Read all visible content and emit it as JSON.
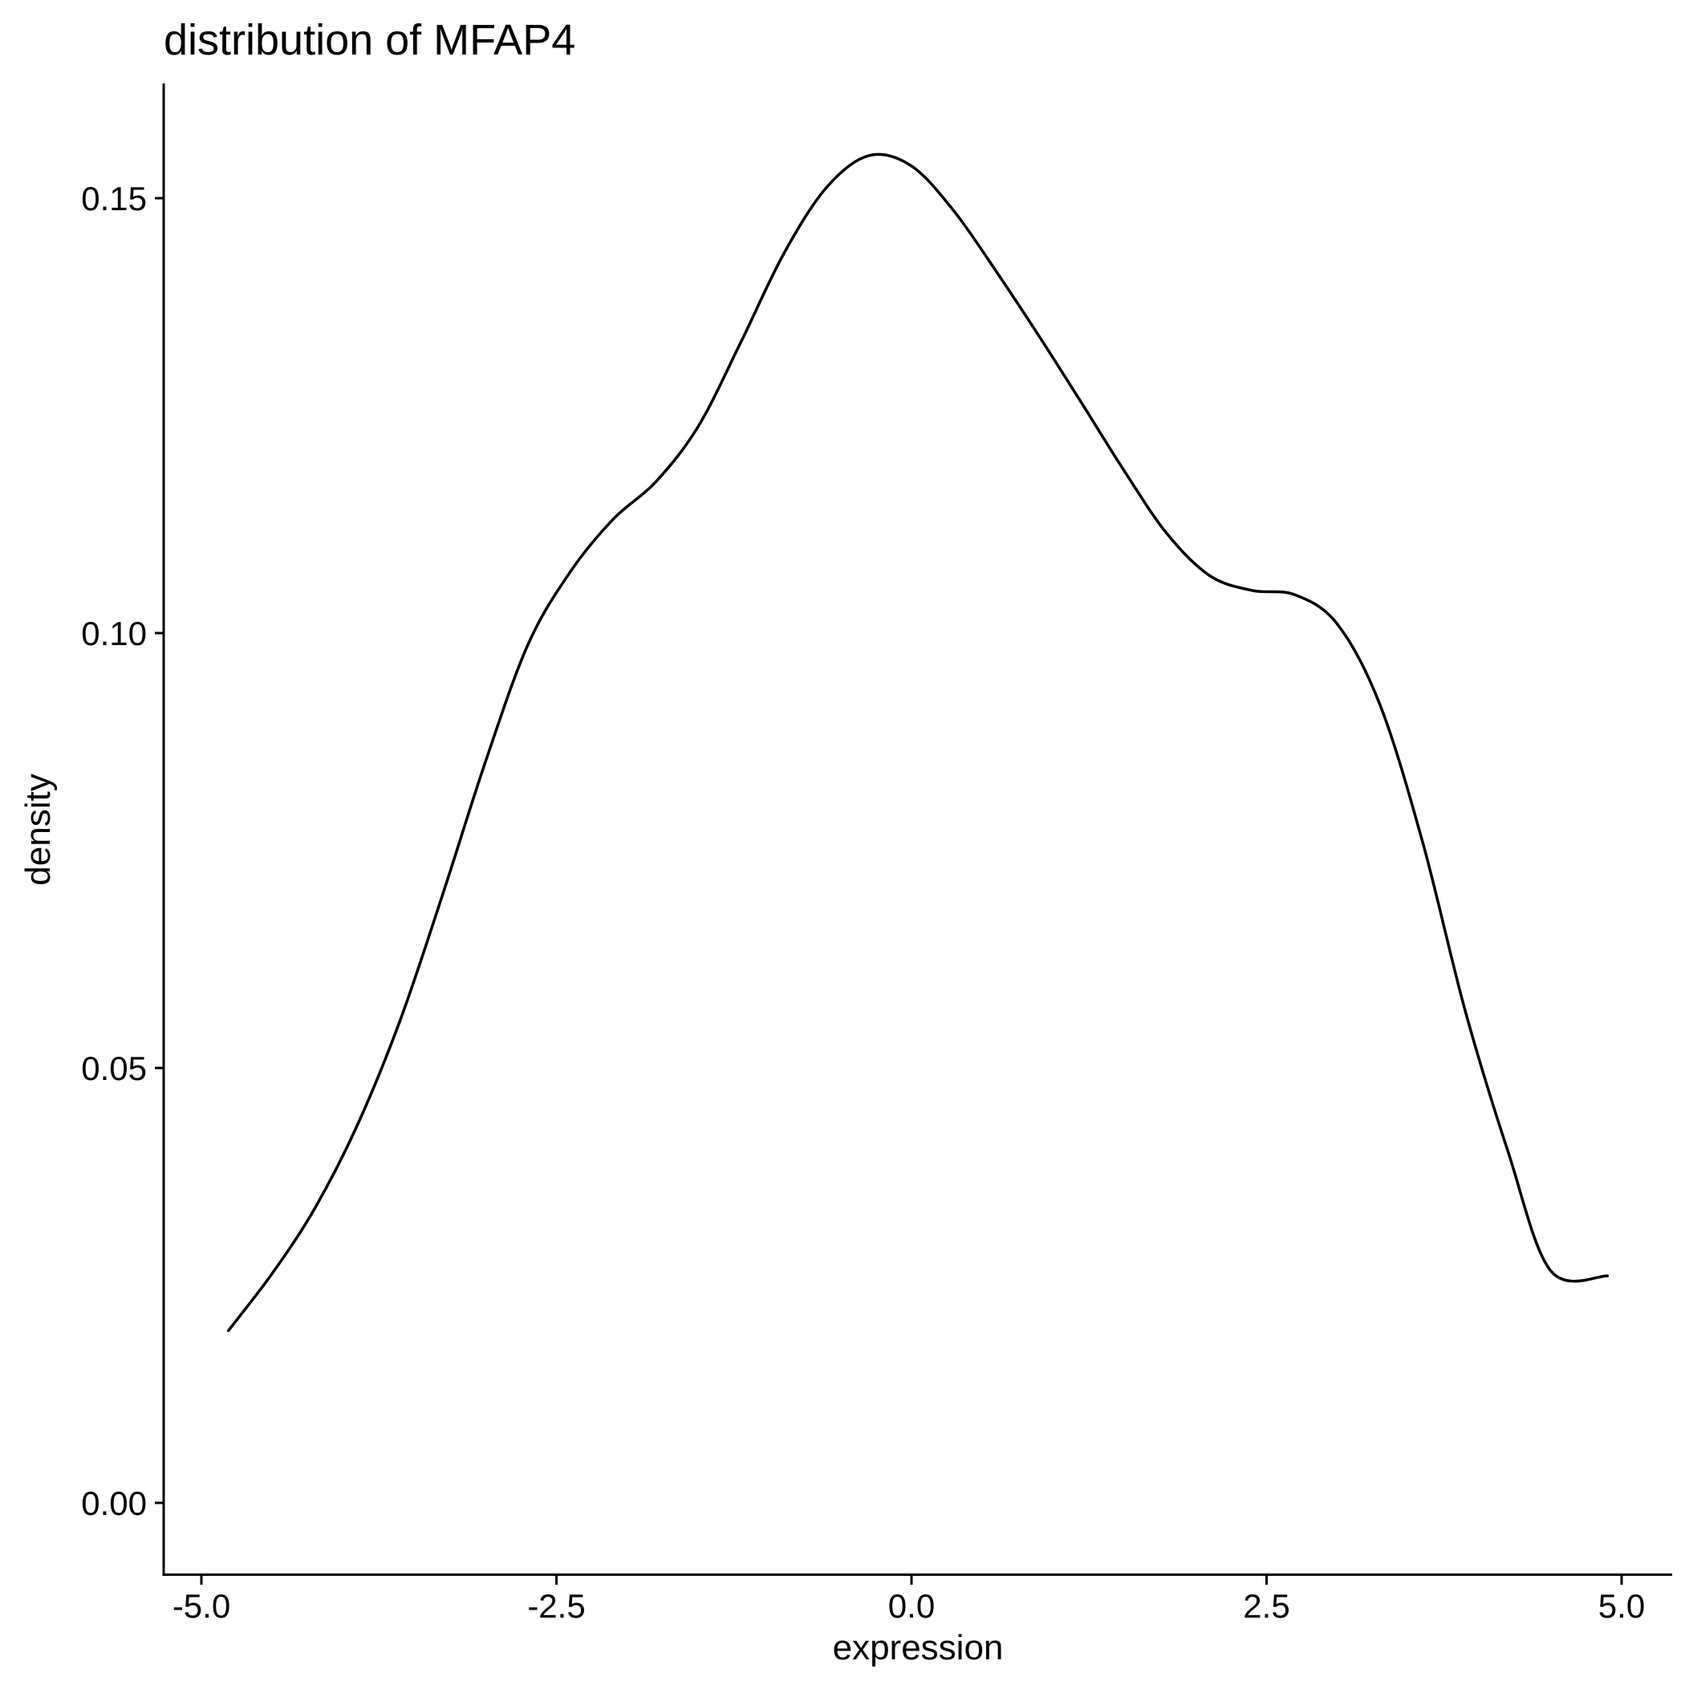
{
  "chart_data": {
    "type": "line",
    "title": "distribution of MFAP4",
    "xlabel": "expression",
    "ylabel": "density",
    "xlim": [
      -5.0,
      5.0
    ],
    "ylim": [
      0.0,
      0.16
    ],
    "xticks": [
      "-5.0",
      "-2.5",
      "0.0",
      "2.5",
      "5.0"
    ],
    "yticks": [
      "0.00",
      "0.05",
      "0.10",
      "0.15"
    ],
    "grid": false,
    "legend": "none",
    "series": [
      {
        "color": "#000000",
        "x": [
          -4.81,
          -4.5,
          -4.2,
          -3.9,
          -3.6,
          -3.3,
          -3.0,
          -2.7,
          -2.4,
          -2.1,
          -1.8,
          -1.5,
          -1.2,
          -0.9,
          -0.6,
          -0.3,
          0.0,
          0.3,
          0.6,
          0.9,
          1.2,
          1.5,
          1.8,
          2.1,
          2.4,
          2.7,
          3.0,
          3.3,
          3.6,
          3.9,
          4.2,
          4.5,
          4.9
        ],
        "y": [
          0.0198,
          0.0264,
          0.0339,
          0.0435,
          0.0555,
          0.07,
          0.0852,
          0.0987,
          0.1071,
          0.1131,
          0.1174,
          0.1238,
          0.1335,
          0.1436,
          0.1512,
          0.1549,
          0.1537,
          0.1485,
          0.1415,
          0.1341,
          0.1264,
          0.1186,
          0.1114,
          0.1066,
          0.1049,
          0.1044,
          0.101,
          0.0917,
          0.0759,
          0.0565,
          0.0404,
          0.0267,
          0.0261
        ]
      }
    ]
  }
}
